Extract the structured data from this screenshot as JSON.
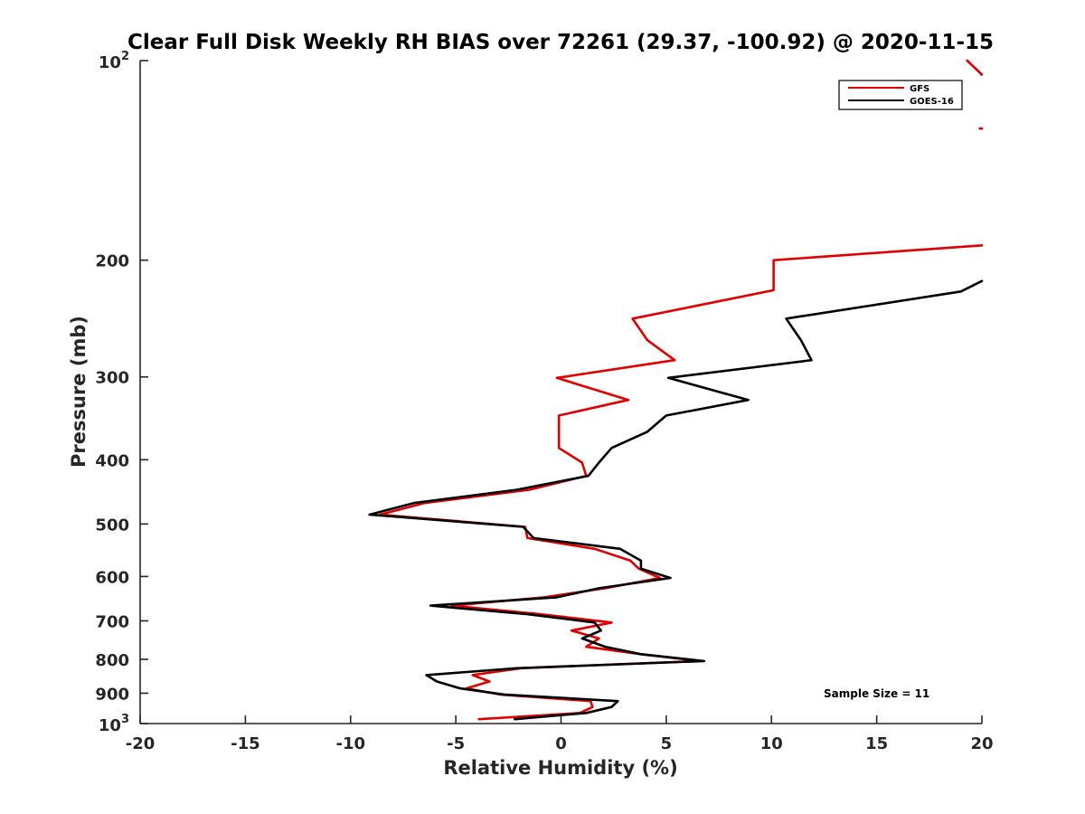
{
  "chart_data": {
    "type": "line",
    "title": "Clear Full Disk Weekly RH BIAS over 72261 (29.37, -100.92) @ 2020-11-15",
    "xlabel": "Relative Humidity (%)",
    "ylabel": "Pressure (mb)",
    "xlim": [
      -20,
      20
    ],
    "ylim": [
      100,
      1000
    ],
    "y_scale": "log",
    "y_reversed": true,
    "grid": false,
    "legend_position": "top-right",
    "x_ticks": [
      "-20",
      "-15",
      "-10",
      "-5",
      "0",
      "5",
      "10",
      "15",
      "20"
    ],
    "y_ticks": [
      {
        "value": 100,
        "base": "10",
        "exp": "2"
      },
      {
        "value": 200,
        "label": "200"
      },
      {
        "value": 300,
        "label": "300"
      },
      {
        "value": 400,
        "label": "400"
      },
      {
        "value": 500,
        "label": "500"
      },
      {
        "value": 600,
        "label": "600"
      },
      {
        "value": 700,
        "label": "700"
      },
      {
        "value": 800,
        "label": "800"
      },
      {
        "value": 900,
        "label": "900"
      },
      {
        "value": 1000,
        "base": "10",
        "exp": "3"
      }
    ],
    "series": [
      {
        "name": "GFS",
        "color": "#e00000",
        "segments": [
          [
            [
              19.3,
              100
            ],
            [
              20,
              105
            ]
          ],
          [
            [
              19.9,
              126.6
            ],
            [
              20,
              126.6
            ]
          ],
          [
            [
              20,
              190
            ],
            [
              10.1,
              200
            ],
            [
              10.1,
              222
            ],
            [
              3.4,
              245
            ],
            [
              4.1,
              264
            ],
            [
              5.4,
              283
            ],
            [
              -0.2,
              301
            ],
            [
              3.2,
              325
            ],
            [
              -0.1,
              343
            ],
            [
              -0.1,
              363
            ],
            [
              -0.1,
              384
            ],
            [
              1.0,
              404
            ],
            [
              1.2,
              423
            ],
            [
              -1.5,
              444
            ],
            [
              -6.5,
              465
            ],
            [
              -8.6,
              484
            ],
            [
              -1.7,
              505
            ],
            [
              -1.6,
              525
            ],
            [
              1.6,
              545
            ],
            [
              3.3,
              568
            ],
            [
              3.7,
              584
            ],
            [
              4.7,
              603
            ],
            [
              2.1,
              625
            ],
            [
              -0.8,
              645
            ],
            [
              -5.2,
              664
            ],
            [
              -1.0,
              684
            ],
            [
              2.4,
              704
            ],
            [
              0.5,
              724
            ],
            [
              1.8,
              744
            ],
            [
              1.2,
              766
            ],
            [
              3.8,
              786
            ],
            [
              6.6,
              805
            ],
            [
              -1.9,
              825
            ],
            [
              -4.2,
              845
            ],
            [
              -3.4,
              864
            ],
            [
              -4.5,
              885
            ],
            [
              -2.9,
              904
            ],
            [
              1.4,
              925
            ],
            [
              1.5,
              944
            ],
            [
              0.9,
              964
            ],
            [
              -3.9,
              985
            ]
          ]
        ]
      },
      {
        "name": "GOES-16",
        "color": "#000000",
        "segments": [
          [
            [
              20,
              215
            ],
            [
              19.0,
              223
            ],
            [
              10.7,
              245
            ],
            [
              11.4,
              264
            ],
            [
              11.9,
              283
            ],
            [
              5.1,
              301
            ],
            [
              8.9,
              325
            ],
            [
              5.0,
              343
            ],
            [
              4.1,
              363
            ],
            [
              2.4,
              384
            ],
            [
              1.8,
              404
            ],
            [
              1.3,
              423
            ],
            [
              -2.1,
              444
            ],
            [
              -7.0,
              465
            ],
            [
              -9.1,
              484
            ],
            [
              -1.8,
              505
            ],
            [
              -1.3,
              525
            ],
            [
              2.8,
              545
            ],
            [
              3.8,
              568
            ],
            [
              3.8,
              584
            ],
            [
              5.2,
              603
            ],
            [
              1.8,
              625
            ],
            [
              -0.2,
              645
            ],
            [
              -6.2,
              664
            ],
            [
              -1.6,
              684
            ],
            [
              1.6,
              704
            ],
            [
              1.9,
              724
            ],
            [
              1.0,
              744
            ],
            [
              2.1,
              766
            ],
            [
              3.8,
              786
            ],
            [
              6.8,
              805
            ],
            [
              -2.1,
              825
            ],
            [
              -6.4,
              845
            ],
            [
              -5.9,
              864
            ],
            [
              -4.8,
              885
            ],
            [
              -2.7,
              904
            ],
            [
              2.7,
              925
            ],
            [
              2.4,
              944
            ],
            [
              1.2,
              964
            ],
            [
              -2.2,
              985
            ]
          ]
        ]
      }
    ],
    "annotations": [
      "Sample Size = 11"
    ]
  }
}
